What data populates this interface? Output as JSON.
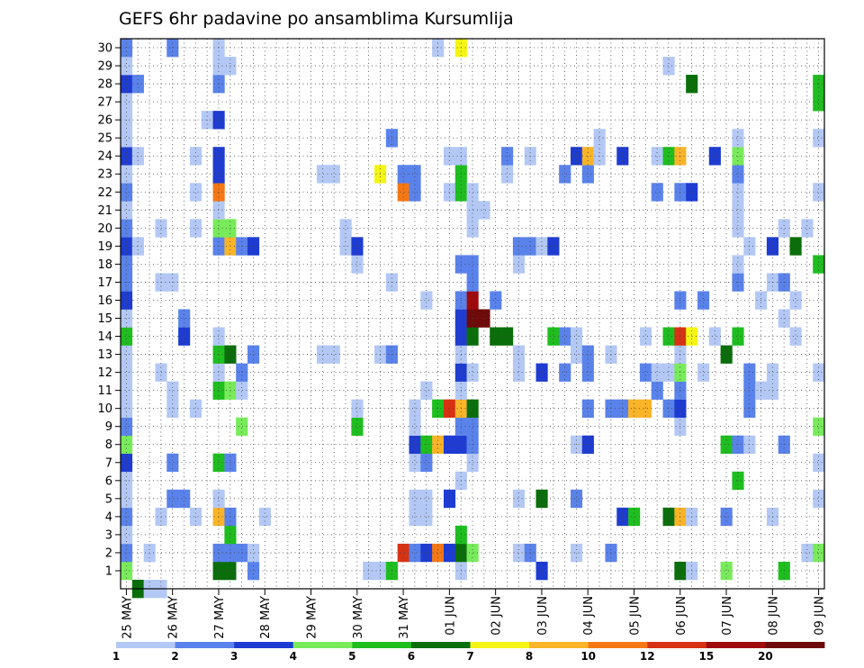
{
  "chart_data": {
    "type": "heatmap",
    "title": "GEFS 6hr padavine po ansamblima Kursumlija",
    "xlabel": "",
    "ylabel": "",
    "x_ticks": [
      "25 MAY",
      "26 MAY",
      "27 MAY",
      "28 MAY",
      "29 MAY",
      "30 MAY",
      "31 MAY",
      "01 JUN",
      "02 JUN",
      "03 JUN",
      "04 JUN",
      "05 JUN",
      "06 JUN",
      "07 JUN",
      "08 JUN",
      "09 JUN"
    ],
    "y_ticks": [
      1,
      2,
      3,
      4,
      5,
      6,
      7,
      8,
      9,
      10,
      11,
      12,
      13,
      14,
      15,
      16,
      17,
      18,
      19,
      20,
      21,
      22,
      23,
      24,
      25,
      26,
      27,
      28,
      29,
      30
    ],
    "time_steps": 61,
    "members": 30,
    "grid": true,
    "legend": {
      "position": "bottom",
      "labels": [
        "1",
        "2",
        "3",
        "4",
        "5",
        "6",
        "7",
        "8",
        "10",
        "12",
        "15",
        "20"
      ],
      "colors": [
        "#b4c8f5",
        "#5a82eb",
        "#1e3cd2",
        "#78eb5a",
        "#1ebe1e",
        "#0a6e0a",
        "#f5f514",
        "#fab428",
        "#f57814",
        "#d73214",
        "#a00a0a",
        "#6e0a0a"
      ]
    },
    "cells": [
      [
        0,
        1,
        3
      ],
      [
        0,
        2,
        1
      ],
      [
        0,
        3,
        0
      ],
      [
        0,
        4,
        1
      ],
      [
        0,
        5,
        0
      ],
      [
        0,
        6,
        0
      ],
      [
        0,
        7,
        2
      ],
      [
        0,
        8,
        3
      ],
      [
        0,
        9,
        1
      ],
      [
        0,
        10,
        0
      ],
      [
        0,
        11,
        0
      ],
      [
        0,
        12,
        0
      ],
      [
        0,
        13,
        0
      ],
      [
        0,
        14,
        4
      ],
      [
        0,
        15,
        0
      ],
      [
        0,
        16,
        2
      ],
      [
        0,
        17,
        1
      ],
      [
        0,
        18,
        1
      ],
      [
        0,
        19,
        2
      ],
      [
        0,
        20,
        1
      ],
      [
        0,
        21,
        0
      ],
      [
        0,
        22,
        1
      ],
      [
        0,
        23,
        0
      ],
      [
        0,
        24,
        2
      ],
      [
        0,
        25,
        0
      ],
      [
        0,
        26,
        0
      ],
      [
        0,
        27,
        0
      ],
      [
        0,
        28,
        2
      ],
      [
        0,
        29,
        0
      ],
      [
        0,
        30,
        1
      ],
      [
        1,
        0,
        5
      ],
      [
        1,
        19,
        0
      ],
      [
        1,
        24,
        0
      ],
      [
        1,
        28,
        1
      ],
      [
        2,
        0,
        0
      ],
      [
        2,
        2,
        0
      ],
      [
        3,
        0,
        0
      ],
      [
        3,
        4,
        0
      ],
      [
        3,
        12,
        0
      ],
      [
        3,
        17,
        0
      ],
      [
        3,
        20,
        0
      ],
      [
        4,
        5,
        1
      ],
      [
        4,
        7,
        1
      ],
      [
        4,
        10,
        0
      ],
      [
        4,
        11,
        0
      ],
      [
        4,
        17,
        0
      ],
      [
        4,
        30,
        1
      ],
      [
        5,
        5,
        1
      ],
      [
        5,
        14,
        2
      ],
      [
        5,
        15,
        1
      ],
      [
        6,
        4,
        0
      ],
      [
        6,
        10,
        0
      ],
      [
        6,
        20,
        0
      ],
      [
        6,
        22,
        0
      ],
      [
        6,
        24,
        0
      ],
      [
        7,
        26,
        0
      ],
      [
        8,
        1,
        5
      ],
      [
        8,
        2,
        1
      ],
      [
        8,
        4,
        7
      ],
      [
        8,
        5,
        0
      ],
      [
        8,
        7,
        4
      ],
      [
        8,
        11,
        4
      ],
      [
        8,
        12,
        0
      ],
      [
        8,
        13,
        4
      ],
      [
        8,
        14,
        0
      ],
      [
        8,
        19,
        1
      ],
      [
        8,
        20,
        3
      ],
      [
        8,
        21,
        0
      ],
      [
        8,
        22,
        8
      ],
      [
        8,
        23,
        2
      ],
      [
        8,
        24,
        2
      ],
      [
        8,
        26,
        2
      ],
      [
        8,
        28,
        1
      ],
      [
        8,
        29,
        0
      ],
      [
        8,
        30,
        0
      ],
      [
        9,
        1,
        5
      ],
      [
        9,
        2,
        1
      ],
      [
        9,
        3,
        4
      ],
      [
        9,
        4,
        1
      ],
      [
        9,
        7,
        1
      ],
      [
        9,
        11,
        3
      ],
      [
        9,
        13,
        5
      ],
      [
        9,
        19,
        7
      ],
      [
        9,
        20,
        3
      ],
      [
        9,
        29,
        0
      ],
      [
        10,
        2,
        1
      ],
      [
        10,
        9,
        3
      ],
      [
        10,
        11,
        0
      ],
      [
        10,
        12,
        1
      ],
      [
        10,
        19,
        1
      ],
      [
        11,
        1,
        1
      ],
      [
        11,
        2,
        0
      ],
      [
        11,
        13,
        1
      ],
      [
        11,
        19,
        2
      ],
      [
        12,
        4,
        0
      ],
      [
        17,
        13,
        0
      ],
      [
        17,
        23,
        0
      ],
      [
        18,
        13,
        0
      ],
      [
        18,
        23,
        0
      ],
      [
        19,
        19,
        0
      ],
      [
        19,
        20,
        0
      ],
      [
        20,
        9,
        4
      ],
      [
        20,
        10,
        0
      ],
      [
        20,
        18,
        0
      ],
      [
        20,
        19,
        2
      ],
      [
        21,
        1,
        0
      ],
      [
        22,
        1,
        0
      ],
      [
        22,
        13,
        0
      ],
      [
        22,
        23,
        6
      ],
      [
        23,
        1,
        4
      ],
      [
        23,
        13,
        1
      ],
      [
        23,
        17,
        0
      ],
      [
        23,
        25,
        1
      ],
      [
        24,
        2,
        9
      ],
      [
        24,
        22,
        8
      ],
      [
        24,
        23,
        1
      ],
      [
        25,
        2,
        1
      ],
      [
        25,
        4,
        0
      ],
      [
        25,
        5,
        0
      ],
      [
        25,
        7,
        0
      ],
      [
        25,
        8,
        2
      ],
      [
        25,
        9,
        0
      ],
      [
        25,
        10,
        0
      ],
      [
        25,
        22,
        1
      ],
      [
        25,
        23,
        1
      ],
      [
        26,
        2,
        2
      ],
      [
        26,
        4,
        0
      ],
      [
        26,
        5,
        0
      ],
      [
        26,
        7,
        1
      ],
      [
        26,
        8,
        4
      ],
      [
        26,
        11,
        0
      ],
      [
        26,
        16,
        0
      ],
      [
        27,
        2,
        8
      ],
      [
        27,
        8,
        7
      ],
      [
        27,
        10,
        4
      ],
      [
        27,
        30,
        0
      ],
      [
        28,
        2,
        2
      ],
      [
        28,
        5,
        2
      ],
      [
        28,
        8,
        2
      ],
      [
        28,
        10,
        9
      ],
      [
        28,
        22,
        0
      ],
      [
        28,
        24,
        0
      ],
      [
        29,
        1,
        0
      ],
      [
        29,
        2,
        5
      ],
      [
        29,
        3,
        4
      ],
      [
        29,
        6,
        0
      ],
      [
        29,
        8,
        2
      ],
      [
        29,
        9,
        1
      ],
      [
        29,
        10,
        7
      ],
      [
        29,
        11,
        0
      ],
      [
        29,
        12,
        2
      ],
      [
        29,
        13,
        0
      ],
      [
        29,
        14,
        2
      ],
      [
        29,
        15,
        2
      ],
      [
        29,
        16,
        1
      ],
      [
        29,
        18,
        1
      ],
      [
        29,
        22,
        4
      ],
      [
        29,
        23,
        4
      ],
      [
        29,
        24,
        0
      ],
      [
        29,
        30,
        6
      ],
      [
        30,
        2,
        3
      ],
      [
        30,
        7,
        0
      ],
      [
        30,
        8,
        1
      ],
      [
        30,
        9,
        1
      ],
      [
        30,
        10,
        5
      ],
      [
        30,
        12,
        0
      ],
      [
        30,
        14,
        5
      ],
      [
        30,
        15,
        11
      ],
      [
        30,
        16,
        10
      ],
      [
        30,
        17,
        1
      ],
      [
        30,
        18,
        1
      ],
      [
        30,
        20,
        0
      ],
      [
        30,
        21,
        0
      ],
      [
        30,
        22,
        0
      ],
      [
        31,
        15,
        11
      ],
      [
        31,
        21,
        0
      ],
      [
        32,
        14,
        5
      ],
      [
        32,
        16,
        1
      ],
      [
        33,
        14,
        5
      ],
      [
        33,
        23,
        0
      ],
      [
        33,
        24,
        1
      ],
      [
        34,
        2,
        0
      ],
      [
        34,
        5,
        0
      ],
      [
        34,
        12,
        0
      ],
      [
        34,
        13,
        0
      ],
      [
        34,
        18,
        0
      ],
      [
        34,
        19,
        1
      ],
      [
        35,
        2,
        1
      ],
      [
        35,
        19,
        1
      ],
      [
        35,
        24,
        0
      ],
      [
        36,
        1,
        2
      ],
      [
        36,
        5,
        5
      ],
      [
        36,
        12,
        2
      ],
      [
        36,
        19,
        0
      ],
      [
        37,
        14,
        4
      ],
      [
        37,
        19,
        2
      ],
      [
        38,
        12,
        1
      ],
      [
        38,
        14,
        1
      ],
      [
        38,
        23,
        1
      ],
      [
        39,
        2,
        0
      ],
      [
        39,
        5,
        1
      ],
      [
        39,
        8,
        0
      ],
      [
        39,
        13,
        0
      ],
      [
        39,
        14,
        0
      ],
      [
        39,
        24,
        2
      ],
      [
        40,
        8,
        2
      ],
      [
        40,
        10,
        1
      ],
      [
        40,
        12,
        1
      ],
      [
        40,
        13,
        1
      ],
      [
        40,
        23,
        1
      ],
      [
        40,
        24,
        7
      ],
      [
        41,
        24,
        0
      ],
      [
        41,
        25,
        0
      ],
      [
        42,
        2,
        1
      ],
      [
        42,
        10,
        1
      ],
      [
        42,
        13,
        0
      ],
      [
        43,
        4,
        2
      ],
      [
        43,
        10,
        1
      ],
      [
        43,
        24,
        2
      ],
      [
        44,
        4,
        4
      ],
      [
        44,
        10,
        7
      ],
      [
        45,
        10,
        7
      ],
      [
        45,
        12,
        1
      ],
      [
        45,
        14,
        0
      ],
      [
        46,
        11,
        1
      ],
      [
        46,
        12,
        0
      ],
      [
        46,
        22,
        1
      ],
      [
        46,
        24,
        0
      ],
      [
        47,
        4,
        5
      ],
      [
        47,
        10,
        1
      ],
      [
        47,
        12,
        0
      ],
      [
        47,
        14,
        4
      ],
      [
        47,
        24,
        4
      ],
      [
        47,
        29,
        0
      ],
      [
        48,
        1,
        5
      ],
      [
        48,
        4,
        7
      ],
      [
        48,
        9,
        0
      ],
      [
        48,
        10,
        2
      ],
      [
        48,
        11,
        1
      ],
      [
        48,
        12,
        3
      ],
      [
        48,
        13,
        0
      ],
      [
        48,
        14,
        9
      ],
      [
        48,
        16,
        1
      ],
      [
        48,
        22,
        1
      ],
      [
        48,
        24,
        7
      ],
      [
        49,
        1,
        0
      ],
      [
        49,
        4,
        0
      ],
      [
        49,
        14,
        6
      ],
      [
        49,
        22,
        2
      ],
      [
        49,
        28,
        5
      ],
      [
        50,
        12,
        0
      ],
      [
        50,
        16,
        1
      ],
      [
        51,
        14,
        0
      ],
      [
        51,
        24,
        2
      ],
      [
        52,
        1,
        3
      ],
      [
        52,
        4,
        1
      ],
      [
        52,
        8,
        4
      ],
      [
        52,
        13,
        5
      ],
      [
        53,
        6,
        4
      ],
      [
        53,
        8,
        1
      ],
      [
        53,
        14,
        4
      ],
      [
        53,
        17,
        1
      ],
      [
        53,
        18,
        0
      ],
      [
        53,
        20,
        0
      ],
      [
        53,
        21,
        0
      ],
      [
        53,
        22,
        0
      ],
      [
        53,
        23,
        1
      ],
      [
        53,
        24,
        3
      ],
      [
        53,
        25,
        0
      ],
      [
        54,
        8,
        0
      ],
      [
        54,
        10,
        1
      ],
      [
        54,
        11,
        1
      ],
      [
        54,
        12,
        1
      ],
      [
        54,
        19,
        0
      ],
      [
        55,
        11,
        0
      ],
      [
        55,
        16,
        0
      ],
      [
        56,
        4,
        0
      ],
      [
        56,
        11,
        0
      ],
      [
        56,
        12,
        0
      ],
      [
        56,
        17,
        0
      ],
      [
        56,
        19,
        2
      ],
      [
        57,
        1,
        4
      ],
      [
        57,
        8,
        1
      ],
      [
        57,
        15,
        0
      ],
      [
        57,
        17,
        1
      ],
      [
        57,
        20,
        0
      ],
      [
        58,
        14,
        0
      ],
      [
        58,
        16,
        0
      ],
      [
        58,
        19,
        5
      ],
      [
        59,
        2,
        0
      ],
      [
        59,
        20,
        0
      ],
      [
        60,
        2,
        3
      ],
      [
        60,
        5,
        0
      ],
      [
        60,
        7,
        0
      ],
      [
        60,
        9,
        3
      ],
      [
        60,
        12,
        0
      ],
      [
        60,
        18,
        4
      ],
      [
        60,
        22,
        0
      ],
      [
        60,
        25,
        0
      ],
      [
        60,
        27,
        4
      ],
      [
        60,
        28,
        4
      ]
    ]
  }
}
